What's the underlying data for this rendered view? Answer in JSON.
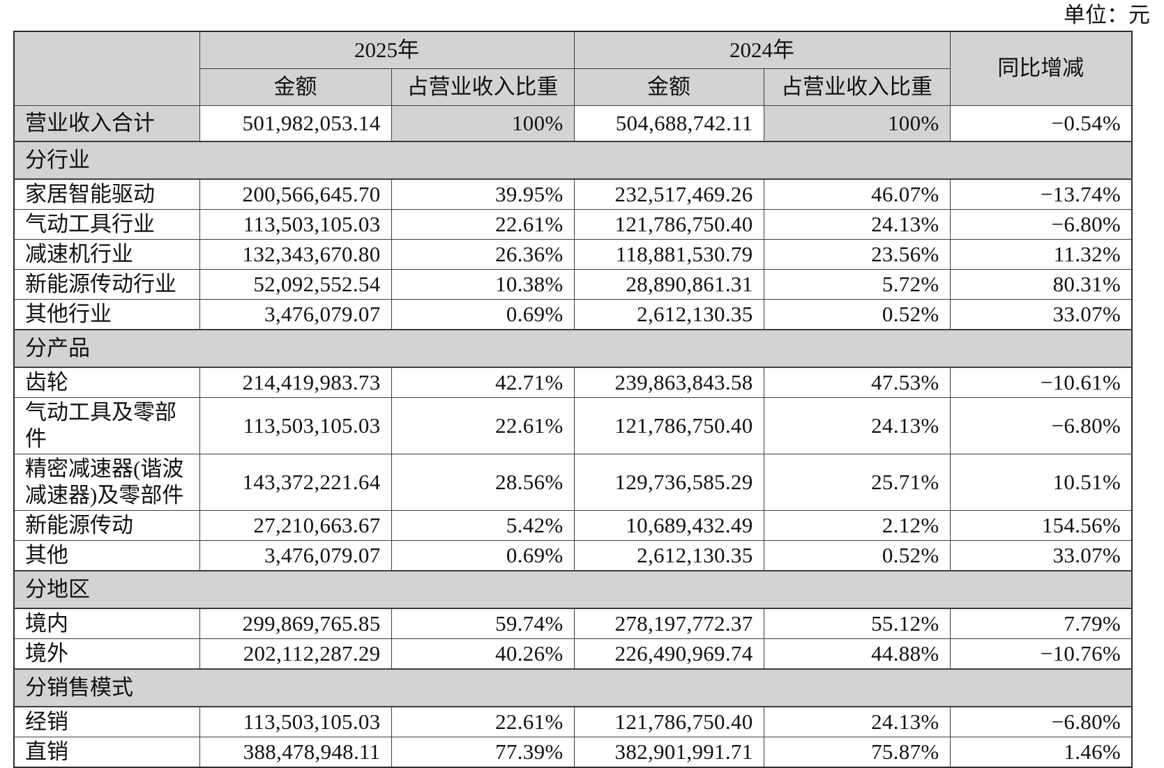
{
  "unit_label": "单位：元",
  "colors": {
    "shaded_bg": "#d3d3d3",
    "border": "#3c3c3c",
    "border_strong": "#2c2c2c",
    "text": "#111111",
    "page_bg": "#ffffff"
  },
  "table": {
    "header": {
      "year_2025": "2025年",
      "year_2024": "2024年",
      "yoy_label": "同比增减",
      "amount_label": "金额",
      "ratio_label": "占营业收入比重"
    },
    "rows": [
      {
        "type": "total",
        "label": "营业收入合计",
        "cells": [
          "501,982,053.14",
          "100%",
          "504,688,742.11",
          "100%",
          "−0.54%"
        ]
      },
      {
        "type": "section",
        "label": "分行业"
      },
      {
        "type": "data",
        "label": "家居智能驱动",
        "cells": [
          "200,566,645.70",
          "39.95%",
          "232,517,469.26",
          "46.07%",
          "−13.74%"
        ]
      },
      {
        "type": "data",
        "label": "气动工具行业",
        "cells": [
          "113,503,105.03",
          "22.61%",
          "121,786,750.40",
          "24.13%",
          "−6.80%"
        ]
      },
      {
        "type": "data",
        "label": "减速机行业",
        "cells": [
          "132,343,670.80",
          "26.36%",
          "118,881,530.79",
          "23.56%",
          "11.32%"
        ]
      },
      {
        "type": "data",
        "label": "新能源传动行业",
        "cells": [
          "52,092,552.54",
          "10.38%",
          "28,890,861.31",
          "5.72%",
          "80.31%"
        ]
      },
      {
        "type": "data",
        "label": "其他行业",
        "cells": [
          "3,476,079.07",
          "0.69%",
          "2,612,130.35",
          "0.52%",
          "33.07%"
        ]
      },
      {
        "type": "section",
        "label": "分产品"
      },
      {
        "type": "data",
        "label": "齿轮",
        "cells": [
          "214,419,983.73",
          "42.71%",
          "239,863,843.58",
          "47.53%",
          "−10.61%"
        ]
      },
      {
        "type": "data",
        "label": "气动工具及零部件",
        "cells": [
          "113,503,105.03",
          "22.61%",
          "121,786,750.40",
          "24.13%",
          "−6.80%"
        ]
      },
      {
        "type": "data",
        "label": "精密减速器(谐波减速器)及零部件",
        "cells": [
          "143,372,221.64",
          "28.56%",
          "129,736,585.29",
          "25.71%",
          "10.51%"
        ]
      },
      {
        "type": "data",
        "label": "新能源传动",
        "cells": [
          "27,210,663.67",
          "5.42%",
          "10,689,432.49",
          "2.12%",
          "154.56%"
        ]
      },
      {
        "type": "data",
        "label": "其他",
        "cells": [
          "3,476,079.07",
          "0.69%",
          "2,612,130.35",
          "0.52%",
          "33.07%"
        ]
      },
      {
        "type": "section",
        "label": "分地区"
      },
      {
        "type": "data",
        "label": "境内",
        "cells": [
          "299,869,765.85",
          "59.74%",
          "278,197,772.37",
          "55.12%",
          "7.79%"
        ]
      },
      {
        "type": "data",
        "label": "境外",
        "cells": [
          "202,112,287.29",
          "40.26%",
          "226,490,969.74",
          "44.88%",
          "−10.76%"
        ]
      },
      {
        "type": "section",
        "label": "分销售模式"
      },
      {
        "type": "data",
        "label": "经销",
        "cells": [
          "113,503,105.03",
          "22.61%",
          "121,786,750.40",
          "24.13%",
          "−6.80%"
        ]
      },
      {
        "type": "data",
        "label": "直销",
        "cells": [
          "388,478,948.11",
          "77.39%",
          "382,901,991.71",
          "75.87%",
          "1.46%"
        ]
      }
    ]
  }
}
